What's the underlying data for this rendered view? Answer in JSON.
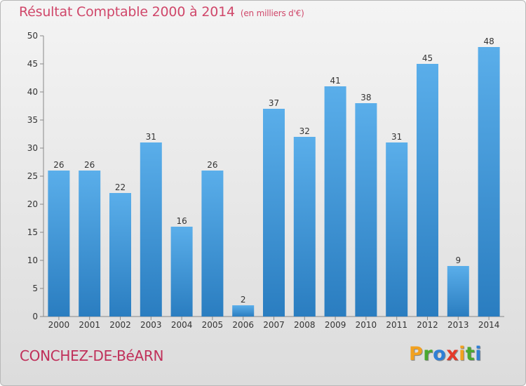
{
  "title": "Résultat Comptable 2000 à 2014",
  "subtitle": "(en milliers d'€)",
  "commune": "CONCHEZ-DE-BéARN",
  "logo": {
    "letters": [
      "P",
      "r",
      "o",
      "x",
      "i",
      "t",
      "i"
    ],
    "colors": [
      "#f2a11f",
      "#4aa830",
      "#2f7fd6",
      "#e53a2a",
      "#f2a11f",
      "#4aa830",
      "#2f7fd6"
    ]
  },
  "colors": {
    "bar_light": "#5aaeea",
    "bar_dark": "#2a7dc0",
    "title": "#d0476a",
    "commune": "#c0305a"
  },
  "chart_data": {
    "type": "bar",
    "title": "Résultat Comptable 2000 à 2014",
    "subtitle": "(en milliers d'€)",
    "xlabel": "",
    "ylabel": "",
    "categories": [
      "2000",
      "2001",
      "2002",
      "2003",
      "2004",
      "2005",
      "2006",
      "2007",
      "2008",
      "2009",
      "2010",
      "2011",
      "2012",
      "2013",
      "2014"
    ],
    "values": [
      26,
      26,
      22,
      31,
      16,
      26,
      2,
      37,
      32,
      41,
      38,
      31,
      45,
      9,
      48
    ],
    "ylim": [
      0,
      50
    ],
    "yticks": [
      0,
      5,
      10,
      15,
      20,
      25,
      30,
      35,
      40,
      45,
      50
    ],
    "grid": false,
    "legend": "none"
  }
}
